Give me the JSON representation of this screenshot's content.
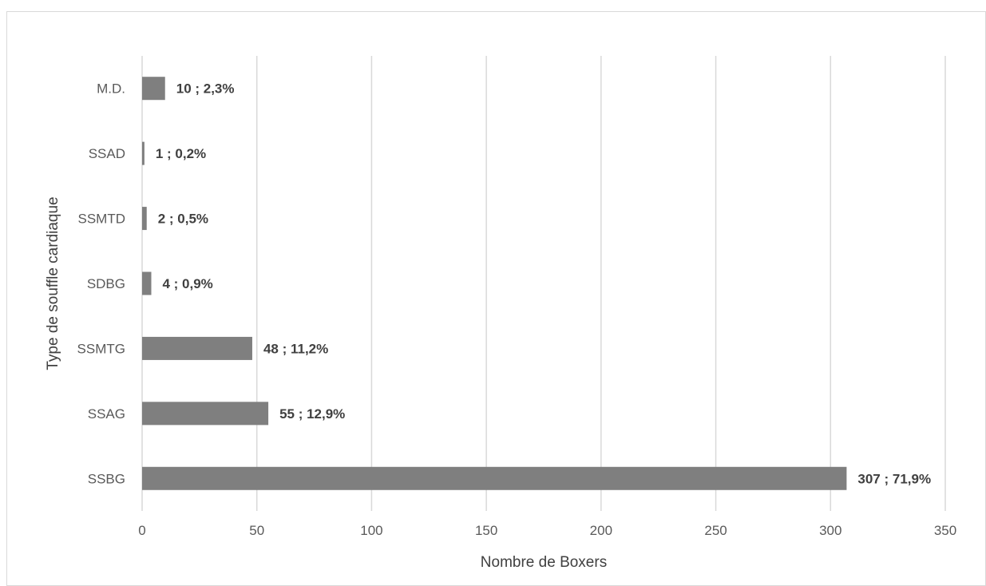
{
  "chart_data": {
    "type": "bar",
    "orientation": "horizontal",
    "categories": [
      "M.D.",
      "SSAD",
      "SSMTD",
      "SDBG",
      "SSMTG",
      "SSAG",
      "SSBG"
    ],
    "values": [
      10,
      1,
      2,
      4,
      48,
      55,
      307
    ],
    "data_labels": [
      "10 ; 2,3%",
      "1 ; 0,2%",
      "2 ; 0,5%",
      "4 ; 0,9%",
      "48 ; 11,2%",
      "55 ; 12,9%",
      "307 ; 71,9%"
    ],
    "title": "",
    "xlabel": "Nombre de Boxers",
    "ylabel": "Type de souffle cardiaque",
    "xlim": [
      0,
      350
    ],
    "xticks": [
      0,
      50,
      100,
      150,
      200,
      250,
      300,
      350
    ],
    "grid": "vertical",
    "bar_color": "#7f7f7f",
    "legend": "none"
  }
}
